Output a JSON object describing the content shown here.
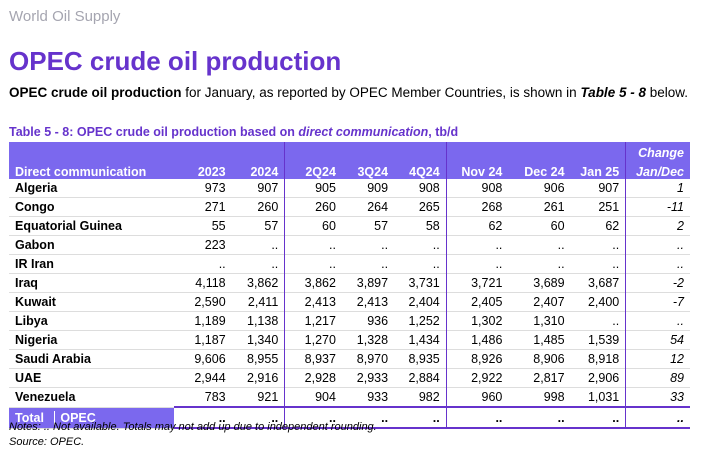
{
  "section_label": "World Oil Supply",
  "title": "OPEC crude oil production",
  "intro": {
    "bold_lead": "OPEC crude oil production",
    "text_mid": " for January, as reported by OPEC Member Countries, is shown in ",
    "table_ref": "Table 5 - 8",
    "text_end": " below."
  },
  "caption": {
    "prefix": "Table 5 - 8: OPEC crude oil production based on ",
    "italic": "direct communication",
    "suffix": ", tb/d"
  },
  "columns": {
    "first": "Direct communication",
    "periods": [
      "2023",
      "2024",
      "2Q24",
      "3Q24",
      "4Q24",
      "Nov 24",
      "Dec 24",
      "Jan 25"
    ],
    "change_top": "Change",
    "change_bottom": "Jan/Dec"
  },
  "rows": [
    {
      "country": "Algeria",
      "values": [
        "973",
        "907",
        "905",
        "909",
        "908",
        "908",
        "906",
        "907"
      ],
      "change": "1"
    },
    {
      "country": "Congo",
      "values": [
        "271",
        "260",
        "260",
        "264",
        "265",
        "268",
        "261",
        "251"
      ],
      "change": "-11"
    },
    {
      "country": "Equatorial Guinea",
      "values": [
        "55",
        "57",
        "60",
        "57",
        "58",
        "62",
        "60",
        "62"
      ],
      "change": "2"
    },
    {
      "country": "Gabon",
      "values": [
        "223",
        "..",
        "..",
        "..",
        "..",
        "..",
        "..",
        ".."
      ],
      "change": ".."
    },
    {
      "country": "IR Iran",
      "values": [
        "..",
        "..",
        "..",
        "..",
        "..",
        "..",
        "..",
        ".."
      ],
      "change": ".."
    },
    {
      "country": "Iraq",
      "values": [
        "4,118",
        "3,862",
        "3,862",
        "3,897",
        "3,731",
        "3,721",
        "3,689",
        "3,687"
      ],
      "change": "-2"
    },
    {
      "country": "Kuwait",
      "values": [
        "2,590",
        "2,411",
        "2,413",
        "2,413",
        "2,404",
        "2,405",
        "2,407",
        "2,400"
      ],
      "change": "-7"
    },
    {
      "country": "Libya",
      "values": [
        "1,189",
        "1,138",
        "1,217",
        "936",
        "1,252",
        "1,302",
        "1,310",
        ".."
      ],
      "change": ".."
    },
    {
      "country": "Nigeria",
      "values": [
        "1,187",
        "1,340",
        "1,270",
        "1,328",
        "1,434",
        "1,486",
        "1,485",
        "1,539"
      ],
      "change": "54"
    },
    {
      "country": "Saudi Arabia",
      "values": [
        "9,606",
        "8,955",
        "8,937",
        "8,970",
        "8,935",
        "8,926",
        "8,906",
        "8,918"
      ],
      "change": "12"
    },
    {
      "country": "UAE",
      "values": [
        "2,944",
        "2,916",
        "2,928",
        "2,933",
        "2,884",
        "2,922",
        "2,817",
        "2,906"
      ],
      "change": "89"
    },
    {
      "country": "Venezuela",
      "values": [
        "783",
        "921",
        "904",
        "933",
        "982",
        "960",
        "998",
        "1,031"
      ],
      "change": "33"
    }
  ],
  "total": {
    "label": "Total",
    "group": "OPEC",
    "values": [
      "..",
      "..",
      "..",
      "..",
      "..",
      "..",
      "..",
      ".."
    ],
    "change": ".."
  },
  "notes": {
    "line1": "Notes: .. Not available. Totals may not add up due to independent rounding.",
    "line2": "Source: OPEC."
  },
  "colors": {
    "accent": "#6633cc",
    "header_fill": "#7b68ee",
    "section_label": "#a5a5b0"
  }
}
